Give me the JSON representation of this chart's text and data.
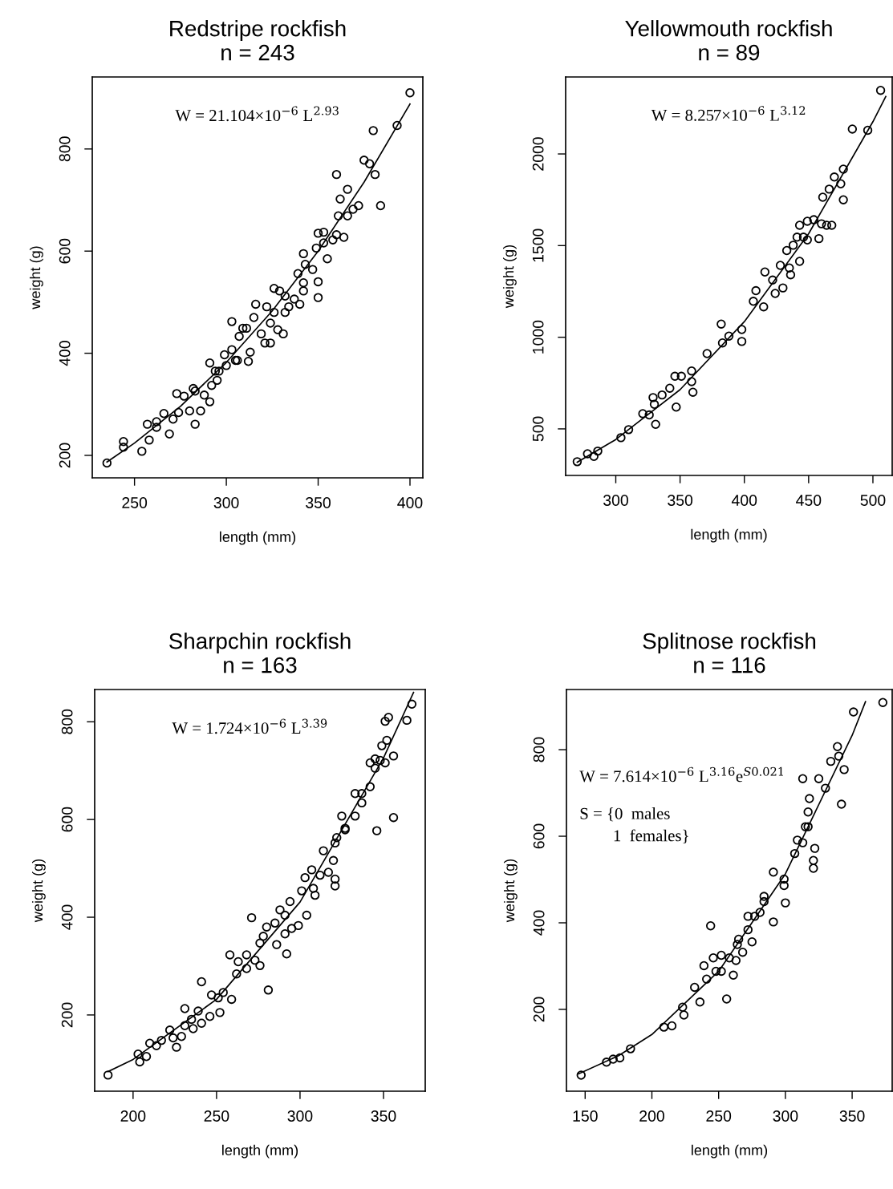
{
  "chart_data": [
    {
      "type": "scatter",
      "title": "Redstripe rockfish",
      "subtitle": "n = 243",
      "xlabel": "length (mm)",
      "ylabel": "weight (g)",
      "xlim": [
        227,
        407
      ],
      "ylim": [
        156,
        941
      ],
      "xticks": [
        250,
        300,
        350,
        400
      ],
      "yticks": [
        200,
        400,
        600,
        800
      ],
      "grid": false,
      "legend": false,
      "annotations": [
        "W = 21.104×10$^{−6}$ L$^{2.93}$"
      ],
      "series": [
        {
          "marker": "circle",
          "color": "#000000",
          "x": [
            235,
            244,
            244,
            254,
            258,
            257,
            262,
            266,
            269,
            271,
            274,
            273,
            277,
            280,
            283,
            282,
            286,
            288,
            291,
            292,
            291,
            295,
            296,
            299,
            300,
            303,
            303,
            306,
            307,
            312,
            311,
            315,
            316,
            319,
            321,
            324,
            324,
            326,
            328,
            326,
            331,
            329,
            332,
            334,
            337,
            340,
            339,
            342,
            342,
            342,
            343,
            347,
            350,
            350,
            349,
            350,
            353,
            355,
            353,
            358,
            360,
            364,
            361,
            362,
            366,
            366,
            369,
            372,
            360,
            375,
            378,
            381,
            384,
            380,
            393,
            400,
            309,
            313,
            305,
            294,
            283,
            262,
            322,
            332
          ],
          "values": [
            185,
            227,
            216,
            208,
            230,
            261,
            266,
            282,
            242,
            271,
            284,
            321,
            316,
            287,
            261,
            331,
            287,
            318,
            305,
            337,
            381,
            347,
            365,
            397,
            376,
            462,
            407,
            386,
            433,
            384,
            449,
            470,
            496,
            438,
            420,
            420,
            459,
            480,
            446,
            527,
            438,
            522,
            512,
            491,
            506,
            496,
            556,
            522,
            538,
            595,
            574,
            564,
            509,
            540,
            606,
            635,
            637,
            585,
            616,
            622,
            632,
            627,
            669,
            702,
            669,
            721,
            682,
            689,
            750,
            778,
            771,
            750,
            689,
            836,
            846,
            910,
            449,
            402,
            386,
            365,
            326,
            255,
            491,
            480
          ]
        },
        {
          "type": "line",
          "color": "#000000",
          "x": [
            235,
            250,
            275,
            300,
            325,
            350,
            375,
            400
          ],
          "values": [
            187,
            224,
            296,
            382,
            483,
            600,
            735,
            888
          ]
        }
      ]
    },
    {
      "type": "scatter",
      "title": "Yellowmouth rockfish",
      "subtitle": "n = 89",
      "xlabel": "length (mm)",
      "ylabel": "weight (g)",
      "xlim": [
        261,
        515
      ],
      "ylim": [
        246,
        2420
      ],
      "xticks": [
        300,
        350,
        400,
        450,
        500
      ],
      "yticks": [
        500,
        1000,
        1500,
        2000
      ],
      "grid": false,
      "legend": false,
      "annotations": [
        "W = 8.257×10$^{−6}$ L$^{3.12}$"
      ],
      "series": [
        {
          "marker": "circle",
          "color": "#000000",
          "x": [
            270,
            278,
            283,
            286,
            304,
            310,
            321,
            326,
            331,
            329,
            330,
            336,
            342,
            347,
            346,
            351,
            359,
            359,
            360,
            371,
            382,
            383,
            388,
            398,
            398,
            407,
            409,
            415,
            416,
            422,
            424,
            430,
            428,
            433,
            435,
            436,
            438,
            443,
            441,
            443,
            449,
            446,
            449,
            454,
            458,
            460,
            464,
            468,
            461,
            466,
            470,
            475,
            477,
            477,
            484,
            496,
            506
          ],
          "values": [
            321,
            364,
            350,
            379,
            452,
            496,
            583,
            576,
            525,
            671,
            634,
            685,
            722,
            619,
            787,
            787,
            816,
            758,
            700,
            911,
            1072,
            969,
            1006,
            1042,
            977,
            1196,
            1254,
            1166,
            1356,
            1312,
            1239,
            1269,
            1392,
            1473,
            1378,
            1341,
            1502,
            1414,
            1546,
            1611,
            1633,
            1546,
            1531,
            1641,
            1538,
            1619,
            1611,
            1611,
            1764,
            1808,
            1874,
            1837,
            1917,
            1750,
            2136,
            2129,
            2347
          ]
        },
        {
          "type": "line",
          "color": "#000000",
          "x": [
            270,
            300,
            350,
            400,
            450,
            500,
            510
          ],
          "values": [
            318,
            442,
            714,
            1085,
            1565,
            2176,
            2313
          ]
        }
      ]
    },
    {
      "type": "scatter",
      "title": "Sharpchin rockfish",
      "subtitle": "n = 163",
      "xlabel": "length (mm)",
      "ylabel": "weight (g)",
      "xlim": [
        177,
        375
      ],
      "ylim": [
        44,
        866
      ],
      "xticks": [
        200,
        250,
        300,
        350
      ],
      "yticks": [
        200,
        400,
        600,
        800
      ],
      "grid": false,
      "legend": false,
      "annotations": [
        "W = 1.724×10$^{−6}$ L$^{3.39}$"
      ],
      "series": [
        {
          "marker": "circle",
          "color": "#000000",
          "x": [
            185,
            203,
            204,
            208,
            210,
            214,
            217,
            222,
            224,
            226,
            229,
            231,
            231,
            235,
            236,
            239,
            241,
            241,
            246,
            247,
            251,
            252,
            254,
            259,
            258,
            262,
            263,
            268,
            268,
            271,
            273,
            276,
            276,
            278,
            280,
            281,
            285,
            286,
            288,
            291,
            291,
            292,
            294,
            295,
            299,
            301,
            303,
            304,
            307,
            308,
            309,
            312,
            314,
            317,
            320,
            321,
            321,
            321,
            322,
            325,
            327,
            327,
            333,
            333,
            337,
            337,
            342,
            342,
            345,
            345,
            346,
            348,
            349,
            351,
            352,
            353,
            356,
            356,
            351,
            364,
            367
          ],
          "values": [
            77,
            120,
            104,
            115,
            142,
            137,
            148,
            169,
            153,
            134,
            156,
            178,
            213,
            191,
            172,
            208,
            183,
            268,
            197,
            241,
            235,
            205,
            246,
            232,
            323,
            284,
            309,
            295,
            323,
            399,
            312,
            347,
            301,
            361,
            380,
            251,
            388,
            344,
            415,
            404,
            366,
            325,
            432,
            377,
            383,
            454,
            481,
            404,
            497,
            459,
            445,
            486,
            536,
            492,
            516,
            478,
            464,
            552,
            563,
            607,
            579,
            582,
            607,
            653,
            653,
            634,
            667,
            716,
            724,
            705,
            577,
            721,
            751,
            716,
            762,
            809,
            604,
            730,
            801,
            803,
            836
          ]
        },
        {
          "type": "line",
          "color": "#000000",
          "x": [
            185,
            200,
            250,
            300,
            350,
            368
          ],
          "values": [
            84,
            109,
            232,
            431,
            726,
            860
          ]
        }
      ]
    },
    {
      "type": "scatter",
      "title": "Splitnose rockfish",
      "subtitle": "n = 116",
      "xlabel": "length (mm)",
      "ylabel": "weight (g)",
      "xlim": [
        136,
        380
      ],
      "ylim": [
        11,
        939
      ],
      "xticks": [
        150,
        200,
        250,
        300,
        350
      ],
      "yticks": [
        200,
        400,
        600,
        800
      ],
      "grid": false,
      "legend": false,
      "annotations": [
        "W = 7.614×10$^{−6}$ L$^{3.16}$e$^{S0.021}$",
        "S = {0  males\n        1  females}"
      ],
      "series": [
        {
          "marker": "circle",
          "color": "#000000",
          "x": [
            147,
            166,
            171,
            176,
            184,
            209,
            215,
            223,
            224,
            232,
            236,
            239,
            241,
            244,
            246,
            248,
            252,
            252,
            256,
            258,
            261,
            263,
            264,
            265,
            268,
            272,
            275,
            272,
            277,
            281,
            284,
            284,
            291,
            291,
            299,
            299,
            300,
            307,
            309,
            313,
            315,
            317,
            322,
            321,
            321,
            317,
            318,
            313,
            325,
            330,
            334,
            339,
            340,
            344,
            342,
            351,
            373
          ],
          "values": [
            48,
            78,
            85,
            88,
            109,
            159,
            162,
            205,
            187,
            251,
            217,
            301,
            270,
            393,
            319,
            288,
            325,
            288,
            224,
            319,
            279,
            313,
            350,
            362,
            332,
            384,
            356,
            415,
            415,
            424,
            461,
            449,
            402,
            517,
            501,
            486,
            446,
            560,
            591,
            585,
            622,
            622,
            572,
            544,
            526,
            656,
            687,
            733,
            733,
            711,
            773,
            807,
            785,
            754,
            674,
            887,
            909
          ]
        },
        {
          "type": "line",
          "color": "#000000",
          "x": [
            145,
            175,
            200,
            250,
            300,
            350,
            360
          ],
          "values": [
            51,
            93,
            142,
            288,
            513,
            833,
            911
          ]
        }
      ]
    }
  ]
}
